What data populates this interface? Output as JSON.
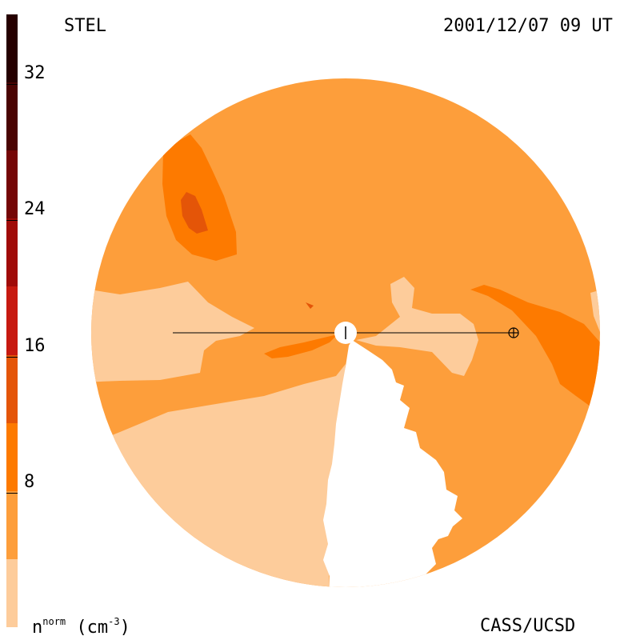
{
  "header": {
    "title": "STEL",
    "timestamp": "2001/12/07 09 UT"
  },
  "footer": {
    "quantity_label": "n",
    "quantity_superscript": "norm",
    "unit_label": "(cm",
    "unit_superscript": "-3",
    "unit_close": ")",
    "credit": "CASS/UCSD"
  },
  "colorbar": {
    "min": 0,
    "max": 36,
    "ticks": [
      {
        "value": 8,
        "label": "8"
      },
      {
        "value": 16,
        "label": "16"
      },
      {
        "value": 24,
        "label": "24"
      },
      {
        "value": 32,
        "label": "32"
      }
    ],
    "levels": [
      {
        "from": 0,
        "to": 4,
        "color": "#fdcc9b"
      },
      {
        "from": 4,
        "to": 8,
        "color": "#fd9e3b"
      },
      {
        "from": 8,
        "to": 12,
        "color": "#fd7a00"
      },
      {
        "from": 12,
        "to": 16,
        "color": "#e45508"
      },
      {
        "from": 16,
        "to": 20,
        "color": "#c71a10"
      },
      {
        "from": 20,
        "to": 24,
        "color": "#a00b08"
      },
      {
        "from": 24,
        "to": 28,
        "color": "#750606"
      },
      {
        "from": 28,
        "to": 32,
        "color": "#4a0402"
      },
      {
        "from": 32,
        "to": 36,
        "color": "#260000"
      }
    ]
  },
  "map_colors": {
    "level1": "#fdcc9b",
    "level2": "#fd9e3b",
    "level3": "#fd7a00",
    "level4": "#e45508",
    "line": "#000000",
    "sun": "#ffffff"
  }
}
